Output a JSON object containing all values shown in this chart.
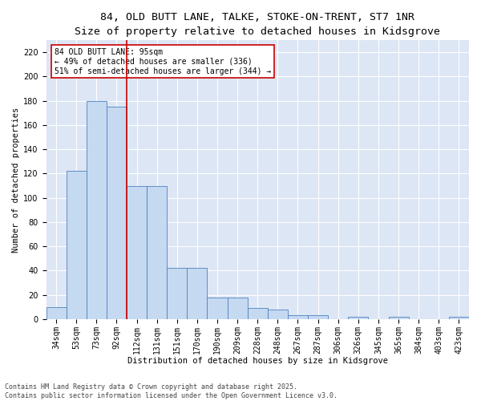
{
  "title_line1": "84, OLD BUTT LANE, TALKE, STOKE-ON-TRENT, ST7 1NR",
  "title_line2": "Size of property relative to detached houses in Kidsgrove",
  "xlabel": "Distribution of detached houses by size in Kidsgrove",
  "ylabel": "Number of detached properties",
  "categories": [
    "34sqm",
    "53sqm",
    "73sqm",
    "92sqm",
    "112sqm",
    "131sqm",
    "151sqm",
    "170sqm",
    "190sqm",
    "209sqm",
    "228sqm",
    "248sqm",
    "267sqm",
    "287sqm",
    "306sqm",
    "326sqm",
    "345sqm",
    "365sqm",
    "384sqm",
    "403sqm",
    "423sqm"
  ],
  "values": [
    10,
    122,
    180,
    175,
    110,
    110,
    42,
    42,
    18,
    18,
    9,
    8,
    3,
    3,
    0,
    2,
    0,
    2,
    0,
    0,
    2
  ],
  "bar_color": "#c5d9f1",
  "bar_edge_color": "#4f81bd",
  "vline_x": 3.5,
  "vline_color": "#cc0000",
  "annotation_text": "84 OLD BUTT LANE: 95sqm\n← 49% of detached houses are smaller (336)\n51% of semi-detached houses are larger (344) →",
  "annotation_box_color": "#ffffff",
  "annotation_box_edge": "#cc0000",
  "ylim": [
    0,
    230
  ],
  "yticks": [
    0,
    20,
    40,
    60,
    80,
    100,
    120,
    140,
    160,
    180,
    200,
    220
  ],
  "footer_line1": "Contains HM Land Registry data © Crown copyright and database right 2025.",
  "footer_line2": "Contains public sector information licensed under the Open Government Licence v3.0.",
  "bg_color": "#dce6f5",
  "fig_bg_color": "#ffffff",
  "title_fontsize": 9.5,
  "subtitle_fontsize": 8.5,
  "axis_label_fontsize": 7.5,
  "tick_fontsize": 7,
  "footer_fontsize": 6,
  "annotation_fontsize": 7
}
